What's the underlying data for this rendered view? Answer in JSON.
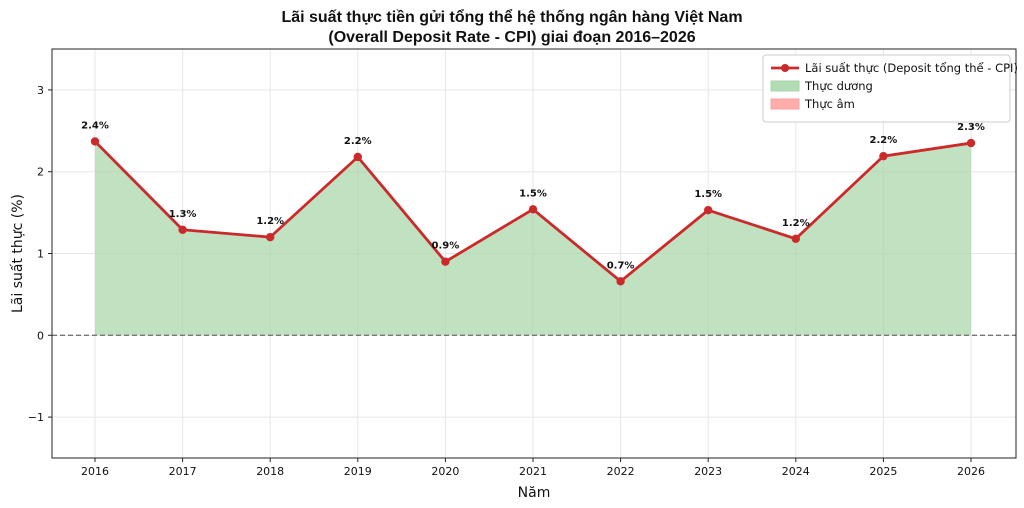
{
  "chart_data": {
    "type": "line",
    "title_line1": "Lãi suất thực tiền gửi tổng thể hệ thống ngân hàng Việt Nam",
    "title_line2": "(Overall Deposit Rate - CPI) giai đoạn 2016–2026",
    "xlabel": "Năm",
    "ylabel": "Lãi suất thực (%)",
    "x": [
      2016,
      2017,
      2018,
      2019,
      2020,
      2021,
      2022,
      2023,
      2024,
      2025,
      2026
    ],
    "series": [
      {
        "name": "Lãi suất thực (Deposit tổng thể - CPI)",
        "values": [
          2.37,
          1.29,
          1.2,
          2.18,
          0.9,
          1.54,
          0.66,
          1.53,
          1.18,
          2.19,
          2.35
        ],
        "labels": [
          "2.4%",
          "1.3%",
          "1.2%",
          "2.2%",
          "0.9%",
          "1.5%",
          "0.7%",
          "1.5%",
          "1.2%",
          "2.2%",
          "2.3%"
        ],
        "color": "#cc2a2a"
      }
    ],
    "fill_legend": [
      {
        "name": "Thực dương",
        "color": "#a5d6a7"
      },
      {
        "name": "Thực âm",
        "color": "#ff9e9e"
      }
    ],
    "ylim": [
      -1.5,
      3.5
    ],
    "yticks": [
      -1,
      0,
      1,
      2,
      3
    ],
    "ytick_labels": [
      "−1",
      "0",
      "1",
      "2",
      "3"
    ],
    "xtick_labels": [
      "2016",
      "2017",
      "2018",
      "2019",
      "2020",
      "2021",
      "2022",
      "2023",
      "2024",
      "2025",
      "2026"
    ],
    "zero_line": 0,
    "grid": true,
    "legend_position": "top-right"
  }
}
